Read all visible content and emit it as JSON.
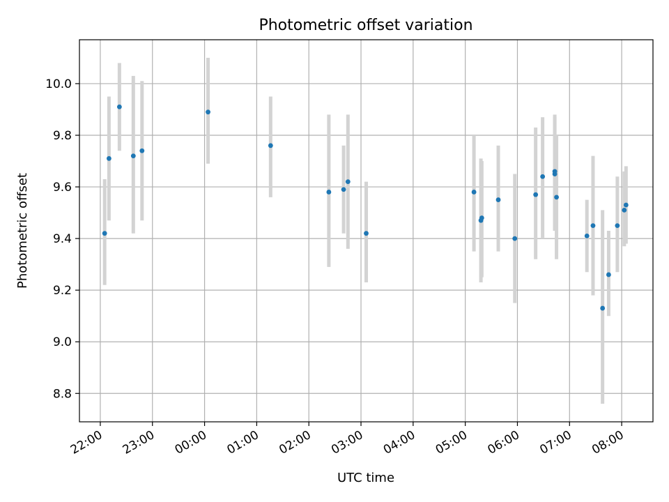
{
  "chart_data": {
    "type": "scatter",
    "title": "Photometric offset variation",
    "xlabel": "UTC time",
    "ylabel": "Photometric offset",
    "x_ticks": [
      "22:00",
      "23:00",
      "00:00",
      "01:00",
      "02:00",
      "03:00",
      "04:00",
      "05:00",
      "06:00",
      "07:00",
      "08:00"
    ],
    "y_ticks": [
      "8.8",
      "9.0",
      "9.2",
      "9.4",
      "9.6",
      "9.8",
      "10.0"
    ],
    "xlim": [
      "21:36",
      "08:36"
    ],
    "ylim": [
      8.69,
      10.17
    ],
    "grid": true,
    "colors": {
      "points": "#1f77b4",
      "errorbars": "#d3d3d3",
      "grid": "#b0b0b0"
    },
    "points": [
      {
        "t": "22:05",
        "y": 9.42,
        "ylo": 9.22,
        "yhi": 9.63
      },
      {
        "t": "22:10",
        "y": 9.71,
        "ylo": 9.47,
        "yhi": 9.95
      },
      {
        "t": "22:22",
        "y": 9.91,
        "ylo": 9.74,
        "yhi": 10.08
      },
      {
        "t": "22:38",
        "y": 9.72,
        "ylo": 9.42,
        "yhi": 10.03
      },
      {
        "t": "22:48",
        "y": 9.74,
        "ylo": 9.47,
        "yhi": 10.01
      },
      {
        "t": "00:04",
        "y": 9.89,
        "ylo": 9.69,
        "yhi": 10.1
      },
      {
        "t": "01:16",
        "y": 9.76,
        "ylo": 9.56,
        "yhi": 9.95
      },
      {
        "t": "02:23",
        "y": 9.58,
        "ylo": 9.29,
        "yhi": 9.88
      },
      {
        "t": "02:40",
        "y": 9.59,
        "ylo": 9.42,
        "yhi": 9.76
      },
      {
        "t": "02:45",
        "y": 9.62,
        "ylo": 9.36,
        "yhi": 9.88
      },
      {
        "t": "03:06",
        "y": 9.42,
        "ylo": 9.23,
        "yhi": 9.62
      },
      {
        "t": "05:10",
        "y": 9.58,
        "ylo": 9.35,
        "yhi": 9.8
      },
      {
        "t": "05:18",
        "y": 9.47,
        "ylo": 9.23,
        "yhi": 9.71
      },
      {
        "t": "05:19",
        "y": 9.48,
        "ylo": 9.25,
        "yhi": 9.7
      },
      {
        "t": "05:38",
        "y": 9.55,
        "ylo": 9.35,
        "yhi": 9.76
      },
      {
        "t": "05:57",
        "y": 9.4,
        "ylo": 9.15,
        "yhi": 9.65
      },
      {
        "t": "06:21",
        "y": 9.57,
        "ylo": 9.32,
        "yhi": 9.83
      },
      {
        "t": "06:29",
        "y": 9.64,
        "ylo": 9.4,
        "yhi": 9.87
      },
      {
        "t": "06:43",
        "y": 9.66,
        "ylo": 9.43,
        "yhi": 9.88
      },
      {
        "t": "06:43",
        "y": 9.65,
        "ylo": 9.43,
        "yhi": 9.87
      },
      {
        "t": "06:45",
        "y": 9.56,
        "ylo": 9.32,
        "yhi": 9.8
      },
      {
        "t": "07:20",
        "y": 9.41,
        "ylo": 9.27,
        "yhi": 9.55
      },
      {
        "t": "07:27",
        "y": 9.45,
        "ylo": 9.18,
        "yhi": 9.72
      },
      {
        "t": "07:38",
        "y": 9.13,
        "ylo": 8.76,
        "yhi": 9.51
      },
      {
        "t": "07:45",
        "y": 9.26,
        "ylo": 9.1,
        "yhi": 9.43
      },
      {
        "t": "07:55",
        "y": 9.45,
        "ylo": 9.27,
        "yhi": 9.64
      },
      {
        "t": "08:03",
        "y": 9.51,
        "ylo": 9.37,
        "yhi": 9.66
      },
      {
        "t": "08:05",
        "y": 9.53,
        "ylo": 9.38,
        "yhi": 9.68
      }
    ]
  }
}
